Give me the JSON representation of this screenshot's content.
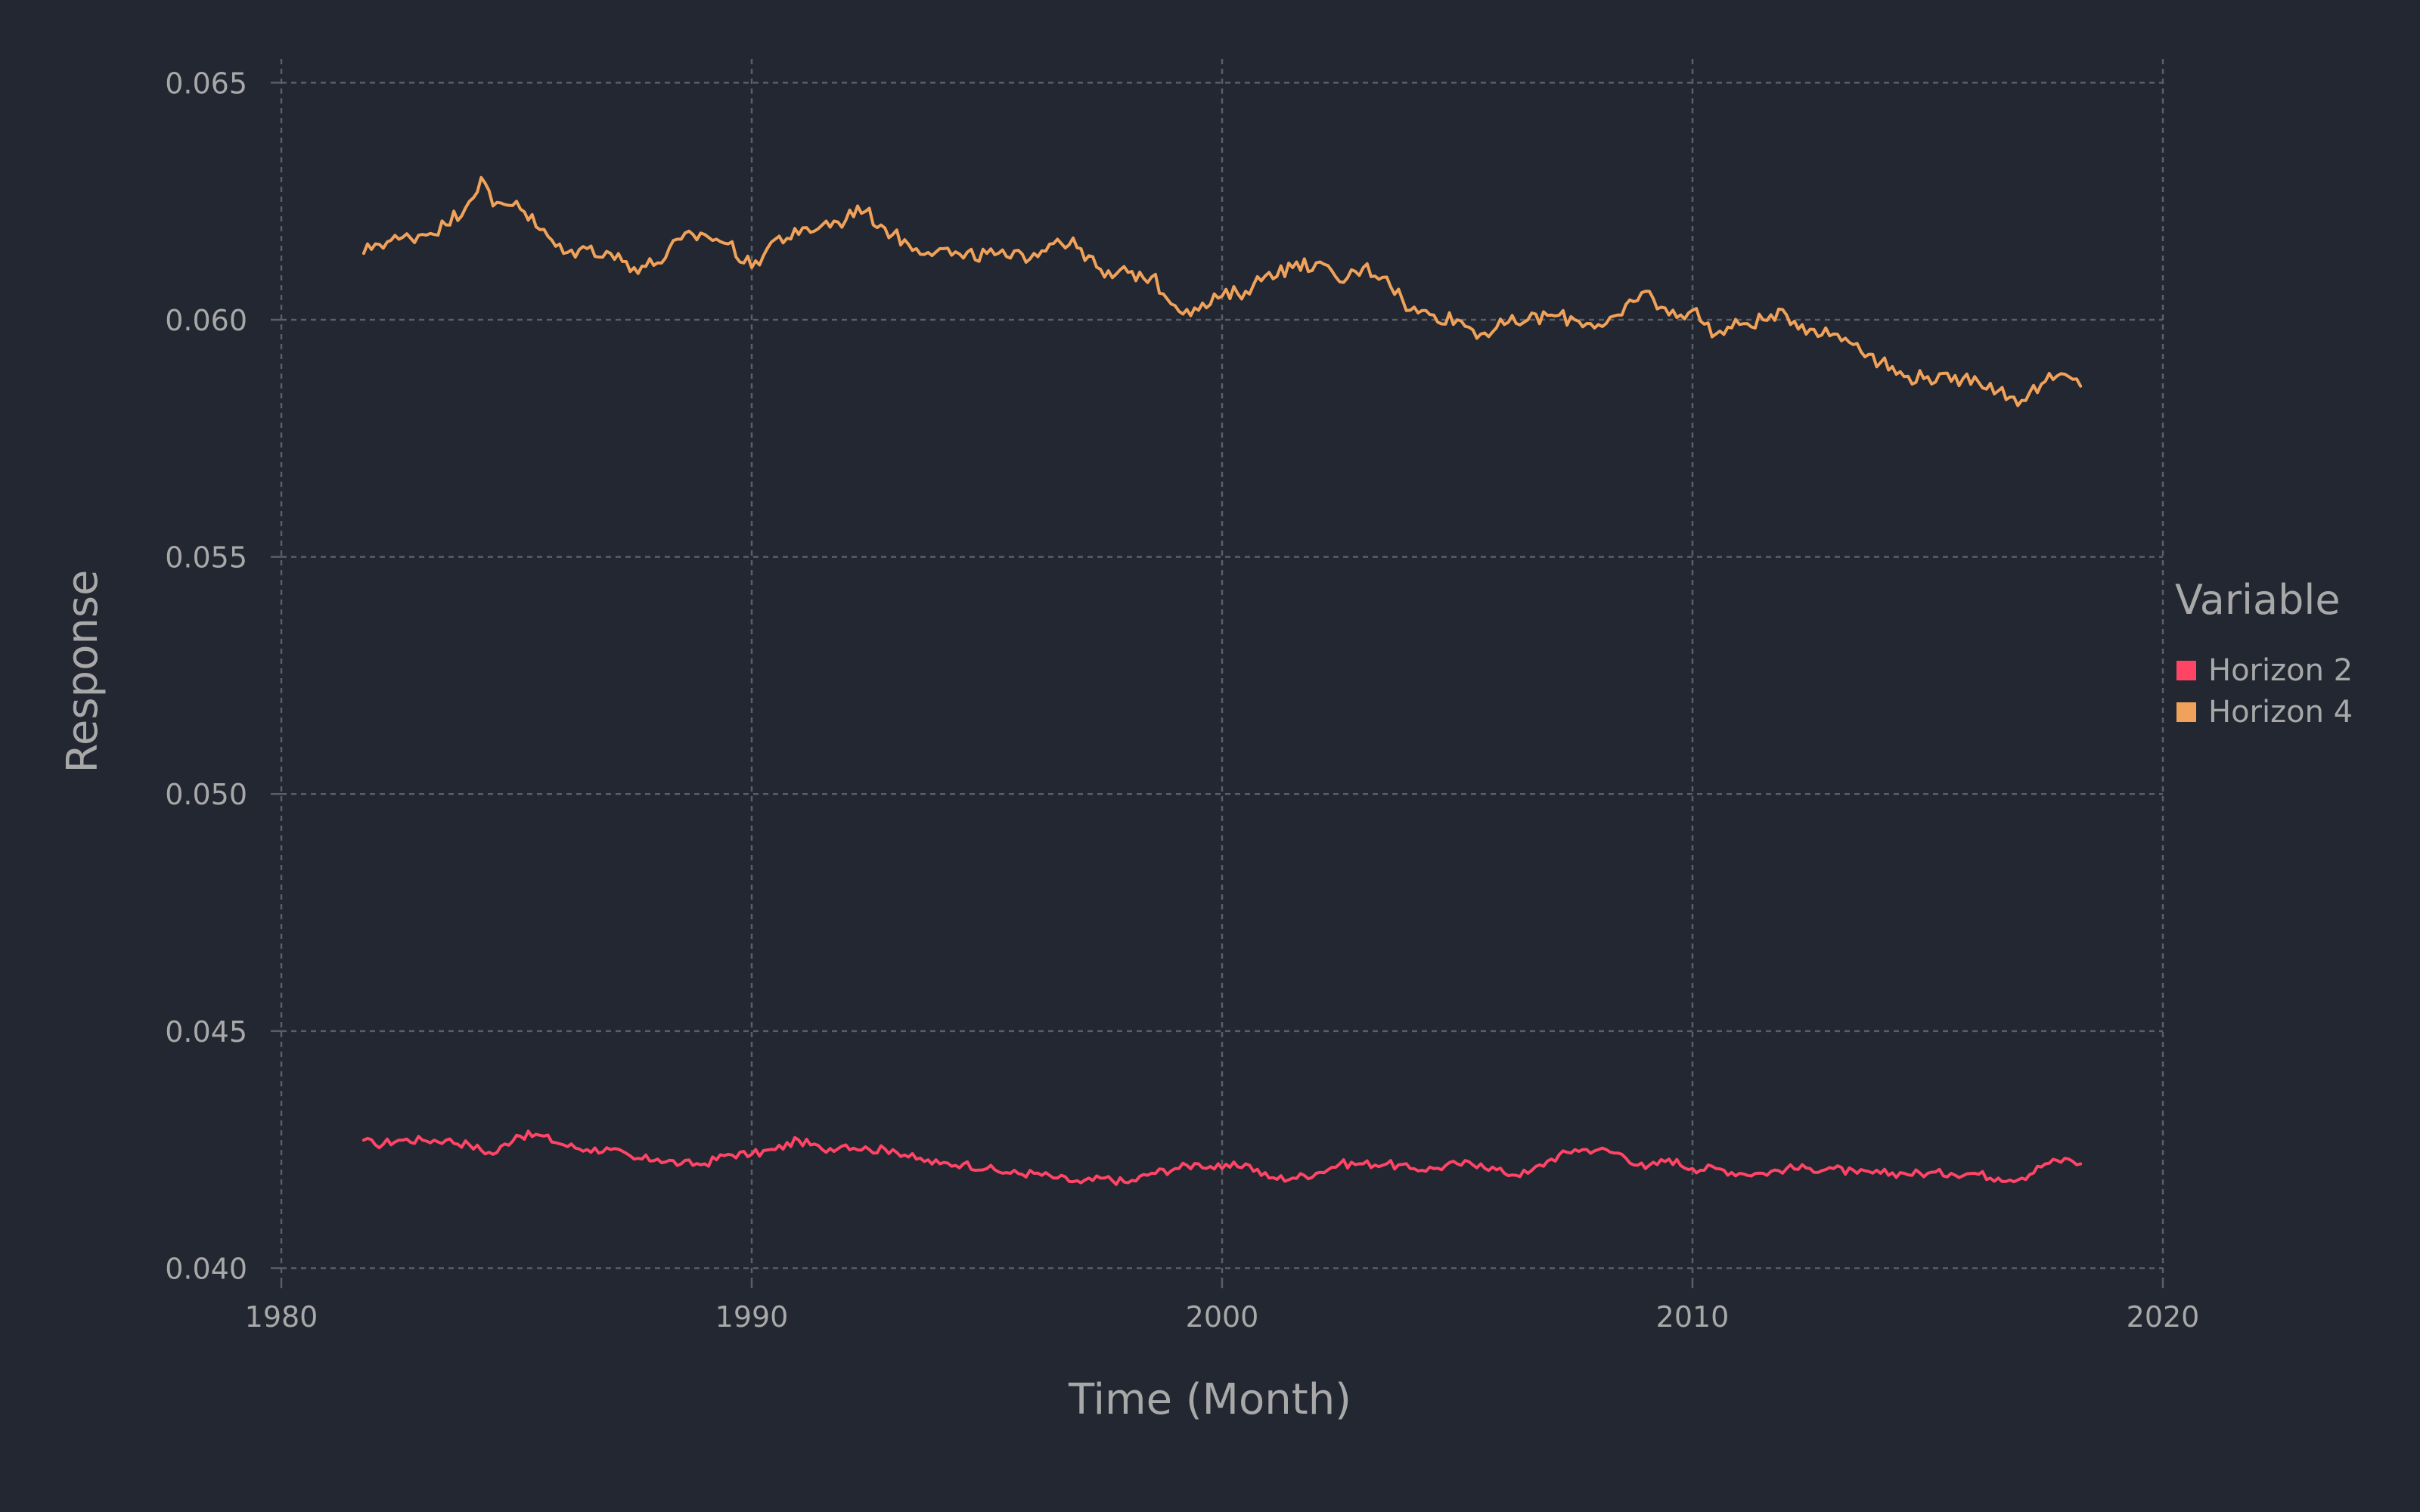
{
  "chart_data": {
    "type": "line",
    "title": "",
    "xlabel": "Time (Month)",
    "ylabel": "Response",
    "xlim": [
      1980,
      2020
    ],
    "ylim": [
      0.04,
      0.065
    ],
    "x_ticks": [
      1980,
      1990,
      2000,
      2010,
      2020
    ],
    "y_ticks": [
      0.04,
      0.045,
      0.05,
      0.055,
      0.06,
      0.065
    ],
    "y_tick_labels": [
      "0.040",
      "0.045",
      "0.050",
      "0.055",
      "0.060",
      "0.065"
    ],
    "grid": true,
    "legend": {
      "title": "Variable",
      "position": "right"
    },
    "series": [
      {
        "name": "Horizon 2",
        "color": "#ff4466",
        "points": [
          [
            1981.75,
            0.0427
          ],
          [
            1982.0,
            0.0426
          ],
          [
            1982.5,
            0.0427
          ],
          [
            1983.0,
            0.0427
          ],
          [
            1983.5,
            0.0427
          ],
          [
            1984.0,
            0.0426
          ],
          [
            1984.5,
            0.0424
          ],
          [
            1985.0,
            0.0428
          ],
          [
            1985.5,
            0.0428
          ],
          [
            1986.0,
            0.0426
          ],
          [
            1986.5,
            0.0425
          ],
          [
            1987.0,
            0.0425
          ],
          [
            1987.5,
            0.0423
          ],
          [
            1988.0,
            0.0423
          ],
          [
            1988.5,
            0.0422
          ],
          [
            1989.0,
            0.0422
          ],
          [
            1989.5,
            0.0424
          ],
          [
            1990.0,
            0.0424
          ],
          [
            1990.5,
            0.0425
          ],
          [
            1991.0,
            0.0427
          ],
          [
            1991.5,
            0.0425
          ],
          [
            1992.0,
            0.0426
          ],
          [
            1992.5,
            0.0425
          ],
          [
            1993.0,
            0.0425
          ],
          [
            1993.5,
            0.0423
          ],
          [
            1994.0,
            0.0422
          ],
          [
            1994.5,
            0.0422
          ],
          [
            1995.0,
            0.0421
          ],
          [
            1995.5,
            0.042
          ],
          [
            1996.0,
            0.042
          ],
          [
            1996.5,
            0.0419
          ],
          [
            1997.0,
            0.0418
          ],
          [
            1997.5,
            0.0419
          ],
          [
            1998.0,
            0.0418
          ],
          [
            1998.5,
            0.042
          ],
          [
            1999.0,
            0.0421
          ],
          [
            1999.5,
            0.0422
          ],
          [
            2000.0,
            0.0421
          ],
          [
            2000.5,
            0.0422
          ],
          [
            2001.0,
            0.0419
          ],
          [
            2001.5,
            0.0419
          ],
          [
            2002.0,
            0.042
          ],
          [
            2002.5,
            0.0422
          ],
          [
            2003.0,
            0.0422
          ],
          [
            2003.5,
            0.0422
          ],
          [
            2004.0,
            0.0421
          ],
          [
            2004.5,
            0.0421
          ],
          [
            2005.0,
            0.0422
          ],
          [
            2005.5,
            0.0422
          ],
          [
            2006.0,
            0.042
          ],
          [
            2006.5,
            0.042
          ],
          [
            2007.0,
            0.0423
          ],
          [
            2007.5,
            0.0425
          ],
          [
            2008.0,
            0.0425
          ],
          [
            2008.5,
            0.0424
          ],
          [
            2009.0,
            0.0421
          ],
          [
            2009.5,
            0.0423
          ],
          [
            2010.0,
            0.0421
          ],
          [
            2010.5,
            0.0421
          ],
          [
            2011.0,
            0.042
          ],
          [
            2011.5,
            0.042
          ],
          [
            2012.0,
            0.0421
          ],
          [
            2012.5,
            0.0421
          ],
          [
            2013.0,
            0.0421
          ],
          [
            2013.5,
            0.042
          ],
          [
            2014.0,
            0.042
          ],
          [
            2014.5,
            0.042
          ],
          [
            2015.0,
            0.042
          ],
          [
            2015.5,
            0.042
          ],
          [
            2016.0,
            0.042
          ],
          [
            2016.5,
            0.0419
          ],
          [
            2017.0,
            0.0419
          ],
          [
            2017.5,
            0.0422
          ],
          [
            2018.0,
            0.0423
          ],
          [
            2018.25,
            0.0422
          ]
        ]
      },
      {
        "name": "Horizon 4",
        "color": "#f0a25a",
        "points": [
          [
            1981.75,
            0.0614
          ],
          [
            1982.0,
            0.0616
          ],
          [
            1982.5,
            0.0617
          ],
          [
            1983.0,
            0.0618
          ],
          [
            1983.5,
            0.062
          ],
          [
            1984.0,
            0.0625
          ],
          [
            1984.25,
            0.063
          ],
          [
            1984.5,
            0.0624
          ],
          [
            1985.0,
            0.0625
          ],
          [
            1985.5,
            0.0619
          ],
          [
            1986.0,
            0.0614
          ],
          [
            1986.5,
            0.0615
          ],
          [
            1987.0,
            0.0614
          ],
          [
            1987.5,
            0.0611
          ],
          [
            1988.0,
            0.0612
          ],
          [
            1988.5,
            0.0617
          ],
          [
            1989.0,
            0.0618
          ],
          [
            1989.5,
            0.0616
          ],
          [
            1990.0,
            0.0611
          ],
          [
            1990.5,
            0.0617
          ],
          [
            1991.0,
            0.0618
          ],
          [
            1991.5,
            0.062
          ],
          [
            1992.0,
            0.0621
          ],
          [
            1992.25,
            0.0624
          ],
          [
            1992.75,
            0.062
          ],
          [
            1993.0,
            0.0618
          ],
          [
            1993.5,
            0.0615
          ],
          [
            1994.0,
            0.0615
          ],
          [
            1994.5,
            0.0613
          ],
          [
            1995.0,
            0.0614
          ],
          [
            1995.5,
            0.0613
          ],
          [
            1996.0,
            0.0614
          ],
          [
            1996.5,
            0.0617
          ],
          [
            1997.0,
            0.0615
          ],
          [
            1997.5,
            0.0609
          ],
          [
            1998.0,
            0.061
          ],
          [
            1998.5,
            0.0609
          ],
          [
            1999.0,
            0.0603
          ],
          [
            1999.5,
            0.0602
          ],
          [
            2000.0,
            0.0605
          ],
          [
            2000.5,
            0.0606
          ],
          [
            2001.0,
            0.061
          ],
          [
            2001.5,
            0.0611
          ],
          [
            2002.0,
            0.0612
          ],
          [
            2002.5,
            0.0608
          ],
          [
            2003.0,
            0.0611
          ],
          [
            2003.5,
            0.0609
          ],
          [
            2004.0,
            0.0602
          ],
          [
            2004.5,
            0.0601
          ],
          [
            2005.0,
            0.06
          ],
          [
            2005.5,
            0.0597
          ],
          [
            2006.0,
            0.0599
          ],
          [
            2006.5,
            0.06
          ],
          [
            2007.0,
            0.0601
          ],
          [
            2007.5,
            0.06
          ],
          [
            2008.0,
            0.0599
          ],
          [
            2008.5,
            0.0601
          ],
          [
            2009.0,
            0.0606
          ],
          [
            2009.5,
            0.0601
          ],
          [
            2010.0,
            0.0602
          ],
          [
            2010.5,
            0.0597
          ],
          [
            2011.0,
            0.0599
          ],
          [
            2011.5,
            0.06
          ],
          [
            2012.0,
            0.0601
          ],
          [
            2012.5,
            0.0598
          ],
          [
            2013.0,
            0.0597
          ],
          [
            2013.5,
            0.0595
          ],
          [
            2014.0,
            0.0591
          ],
          [
            2014.5,
            0.0588
          ],
          [
            2015.0,
            0.0588
          ],
          [
            2015.5,
            0.0587
          ],
          [
            2016.0,
            0.0588
          ],
          [
            2016.5,
            0.0585
          ],
          [
            2017.0,
            0.0583
          ],
          [
            2017.5,
            0.0587
          ],
          [
            2018.0,
            0.0588
          ],
          [
            2018.25,
            0.0586
          ]
        ]
      }
    ]
  }
}
